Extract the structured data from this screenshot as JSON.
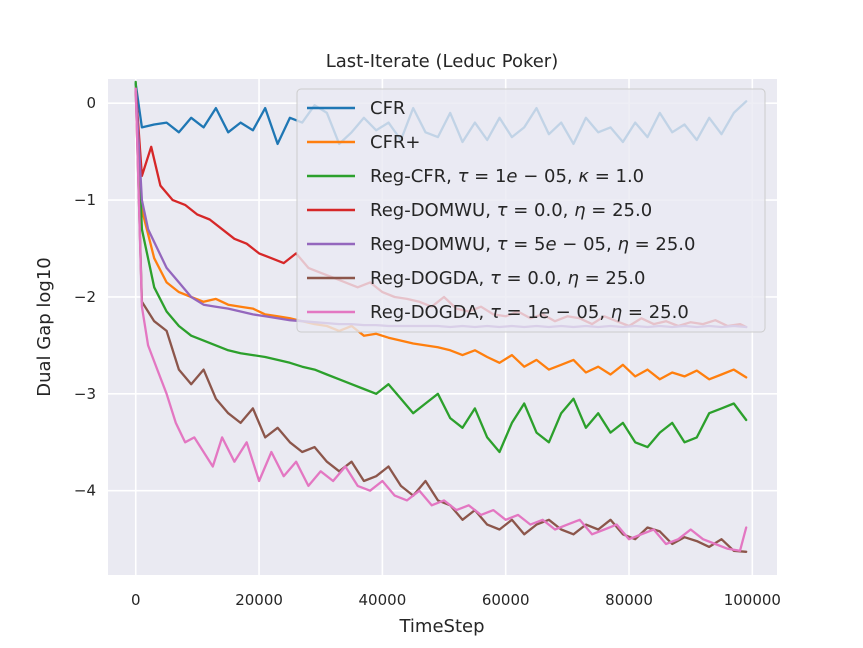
{
  "chart_data": {
    "type": "line",
    "title": "Last-Iterate (Leduc Poker)",
    "xlabel": "TimeStep",
    "ylabel": "Dual Gap log10",
    "xlim": [
      -4500,
      104000
    ],
    "ylim": [
      -4.87,
      0.25
    ],
    "xticks": [
      0,
      20000,
      40000,
      60000,
      80000,
      100000
    ],
    "xtick_labels": [
      "0",
      "20000",
      "40000",
      "60000",
      "80000",
      "100000"
    ],
    "yticks": [
      0,
      -1,
      -2,
      -3,
      -4
    ],
    "ytick_labels": [
      "0",
      "−1",
      "−2",
      "−3",
      "−4"
    ],
    "grid": true,
    "legend_position": "top-right",
    "series": [
      {
        "name": "CFR",
        "label_parts": [
          "CFR"
        ],
        "color": "#1f77b4",
        "x": [
          0,
          1000,
          3000,
          5000,
          7000,
          9000,
          11000,
          13000,
          15000,
          17000,
          19000,
          21000,
          23000,
          25000,
          27000,
          29000,
          31000,
          33000,
          35000,
          37000,
          39000,
          41000,
          43000,
          45000,
          47000,
          49000,
          51000,
          53000,
          55000,
          57000,
          59000,
          61000,
          63000,
          65000,
          67000,
          69000,
          71000,
          73000,
          75000,
          77000,
          79000,
          81000,
          83000,
          85000,
          87000,
          89000,
          91000,
          93000,
          95000,
          97000,
          99000
        ],
        "y": [
          0.2,
          -0.25,
          -0.22,
          -0.2,
          -0.3,
          -0.15,
          -0.25,
          -0.05,
          -0.3,
          -0.2,
          -0.28,
          -0.05,
          -0.42,
          -0.15,
          -0.2,
          -0.02,
          -0.1,
          -0.42,
          -0.3,
          -0.15,
          -0.28,
          -0.2,
          -0.38,
          -0.05,
          -0.3,
          -0.35,
          -0.1,
          -0.4,
          -0.2,
          -0.38,
          -0.15,
          -0.35,
          -0.25,
          -0.05,
          -0.32,
          -0.2,
          -0.42,
          -0.15,
          -0.3,
          -0.25,
          -0.4,
          -0.2,
          -0.35,
          -0.1,
          -0.3,
          -0.22,
          -0.38,
          -0.15,
          -0.32,
          -0.1,
          0.02
        ]
      },
      {
        "name": "CFR+",
        "label_parts": [
          "CFR+"
        ],
        "color": "#ff7f0e",
        "x": [
          0,
          1000,
          3000,
          5000,
          7000,
          9000,
          11000,
          13000,
          15000,
          17000,
          19000,
          21000,
          23000,
          25000,
          27000,
          29000,
          31000,
          33000,
          35000,
          37000,
          39000,
          41000,
          43000,
          45000,
          47000,
          49000,
          51000,
          53000,
          55000,
          57000,
          59000,
          61000,
          63000,
          65000,
          67000,
          69000,
          71000,
          73000,
          75000,
          77000,
          79000,
          81000,
          83000,
          85000,
          87000,
          89000,
          91000,
          93000,
          95000,
          97000,
          99000
        ],
        "y": [
          0.15,
          -1.1,
          -1.6,
          -1.85,
          -1.95,
          -2.0,
          -2.05,
          -2.02,
          -2.08,
          -2.1,
          -2.12,
          -2.18,
          -2.2,
          -2.22,
          -2.25,
          -2.28,
          -2.3,
          -2.35,
          -2.3,
          -2.4,
          -2.38,
          -2.42,
          -2.45,
          -2.48,
          -2.5,
          -2.52,
          -2.55,
          -2.6,
          -2.55,
          -2.62,
          -2.68,
          -2.6,
          -2.72,
          -2.65,
          -2.75,
          -2.7,
          -2.65,
          -2.78,
          -2.72,
          -2.8,
          -2.7,
          -2.82,
          -2.75,
          -2.85,
          -2.78,
          -2.82,
          -2.76,
          -2.85,
          -2.8,
          -2.75,
          -2.83
        ]
      },
      {
        "name": "Reg-CFR",
        "label_parts": [
          "Reg-CFR, ",
          "τ",
          " = 1",
          "e",
          " − 05, ",
          "κ",
          " = 1.0"
        ],
        "color": "#2ca02c",
        "x": [
          0,
          1000,
          3000,
          5000,
          7000,
          9000,
          11000,
          13000,
          15000,
          17000,
          19000,
          21000,
          23000,
          25000,
          27000,
          29000,
          31000,
          33000,
          35000,
          37000,
          39000,
          41000,
          43000,
          45000,
          47000,
          49000,
          51000,
          53000,
          55000,
          57000,
          59000,
          61000,
          63000,
          65000,
          67000,
          69000,
          71000,
          73000,
          75000,
          77000,
          79000,
          81000,
          83000,
          85000,
          87000,
          89000,
          91000,
          93000,
          95000,
          97000,
          99000
        ],
        "y": [
          0.22,
          -1.3,
          -1.9,
          -2.15,
          -2.3,
          -2.4,
          -2.45,
          -2.5,
          -2.55,
          -2.58,
          -2.6,
          -2.62,
          -2.65,
          -2.68,
          -2.72,
          -2.75,
          -2.8,
          -2.85,
          -2.9,
          -2.95,
          -3.0,
          -2.9,
          -3.05,
          -3.2,
          -3.1,
          -3.0,
          -3.25,
          -3.35,
          -3.15,
          -3.45,
          -3.6,
          -3.3,
          -3.1,
          -3.4,
          -3.5,
          -3.2,
          -3.05,
          -3.35,
          -3.2,
          -3.4,
          -3.3,
          -3.5,
          -3.55,
          -3.4,
          -3.3,
          -3.5,
          -3.45,
          -3.2,
          -3.15,
          -3.1,
          -3.27
        ]
      },
      {
        "name": "Reg-DOMWU (tau=0.0)",
        "label_parts": [
          "Reg-DOMWU, ",
          "τ",
          " = 0.0, ",
          "η",
          " = 25.0"
        ],
        "color": "#d62728",
        "x": [
          0,
          1000,
          2500,
          4000,
          6000,
          8000,
          10000,
          12000,
          14000,
          16000,
          18000,
          20000,
          22000,
          24000,
          26000,
          28000,
          30000,
          32000,
          34000,
          36000,
          38000,
          40000,
          42000,
          44000,
          46000,
          48000,
          50000,
          52000,
          54000,
          56000,
          58000,
          60000,
          62000,
          64000,
          66000,
          68000,
          70000,
          72000,
          74000,
          76000,
          78000,
          80000,
          82000,
          84000,
          86000,
          88000,
          90000,
          92000,
          94000,
          96000,
          98000,
          99000
        ],
        "y": [
          0.15,
          -0.75,
          -0.45,
          -0.85,
          -1.0,
          -1.05,
          -1.15,
          -1.2,
          -1.3,
          -1.4,
          -1.45,
          -1.55,
          -1.6,
          -1.65,
          -1.55,
          -1.7,
          -1.75,
          -1.8,
          -1.85,
          -1.9,
          -1.85,
          -1.95,
          -2.0,
          -2.02,
          -2.05,
          -2.1,
          -2.0,
          -2.12,
          -2.15,
          -2.1,
          -2.18,
          -2.2,
          -2.15,
          -2.22,
          -2.18,
          -2.25,
          -2.2,
          -2.22,
          -2.28,
          -2.2,
          -2.25,
          -2.3,
          -2.22,
          -2.28,
          -2.25,
          -2.3,
          -2.26,
          -2.28,
          -2.24,
          -2.3,
          -2.28,
          -2.31
        ]
      },
      {
        "name": "Reg-DOMWU (tau=5e-05)",
        "label_parts": [
          "Reg-DOMWU, ",
          "τ",
          " = 5",
          "e",
          " − 05, ",
          "η",
          " = 25.0"
        ],
        "color": "#9467bd",
        "x": [
          0,
          1000,
          2000,
          3500,
          5000,
          7000,
          9000,
          11000,
          13000,
          15000,
          17000,
          19000,
          21000,
          23000,
          25000,
          27000,
          29000,
          31000,
          33000,
          35000,
          37000,
          39000,
          41000,
          43000,
          45000,
          47000,
          49000,
          51000,
          53000,
          55000,
          57000,
          59000,
          61000,
          63000,
          65000,
          67000,
          69000,
          71000,
          73000,
          75000,
          77000,
          79000,
          81000,
          83000,
          85000,
          87000,
          89000,
          91000,
          93000,
          95000,
          97000,
          99000
        ],
        "y": [
          0.15,
          -1.0,
          -1.3,
          -1.5,
          -1.7,
          -1.85,
          -2.0,
          -2.08,
          -2.1,
          -2.12,
          -2.15,
          -2.18,
          -2.2,
          -2.22,
          -2.24,
          -2.25,
          -2.26,
          -2.27,
          -2.28,
          -2.28,
          -2.29,
          -2.29,
          -2.3,
          -2.3,
          -2.3,
          -2.3,
          -2.3,
          -2.31,
          -2.3,
          -2.31,
          -2.3,
          -2.31,
          -2.3,
          -2.31,
          -2.3,
          -2.31,
          -2.3,
          -2.31,
          -2.3,
          -2.31,
          -2.3,
          -2.31,
          -2.3,
          -2.31,
          -2.3,
          -2.31,
          -2.3,
          -2.31,
          -2.3,
          -2.31,
          -2.3,
          -2.31
        ]
      },
      {
        "name": "Reg-DOGDA (tau=0.0)",
        "label_parts": [
          "Reg-DOGDA, ",
          "τ",
          " = 0.0, ",
          "η",
          " = 25.0"
        ],
        "color": "#8c564b",
        "x": [
          0,
          1000,
          3000,
          5000,
          7000,
          9000,
          11000,
          13000,
          15000,
          17000,
          19000,
          21000,
          23000,
          25000,
          27000,
          29000,
          31000,
          33000,
          35000,
          37000,
          39000,
          41000,
          43000,
          45000,
          47000,
          49000,
          51000,
          53000,
          55000,
          57000,
          59000,
          61000,
          63000,
          65000,
          67000,
          69000,
          71000,
          73000,
          75000,
          77000,
          79000,
          81000,
          83000,
          85000,
          87000,
          89000,
          91000,
          93000,
          95000,
          97000,
          99000
        ],
        "y": [
          0.15,
          -2.05,
          -2.25,
          -2.35,
          -2.75,
          -2.9,
          -2.75,
          -3.05,
          -3.2,
          -3.3,
          -3.15,
          -3.45,
          -3.35,
          -3.5,
          -3.6,
          -3.55,
          -3.7,
          -3.8,
          -3.7,
          -3.9,
          -3.85,
          -3.75,
          -3.95,
          -4.05,
          -3.9,
          -4.1,
          -4.15,
          -4.3,
          -4.2,
          -4.35,
          -4.4,
          -4.3,
          -4.45,
          -4.35,
          -4.3,
          -4.4,
          -4.45,
          -4.35,
          -4.4,
          -4.3,
          -4.45,
          -4.5,
          -4.38,
          -4.42,
          -4.55,
          -4.48,
          -4.52,
          -4.58,
          -4.5,
          -4.62,
          -4.63
        ]
      },
      {
        "name": "Reg-DOGDA (tau=1e-05)",
        "label_parts": [
          "Reg-DOGDA, ",
          "τ",
          " = 1",
          "e",
          " − 05, ",
          "η",
          " = 25.0"
        ],
        "color": "#e377c2",
        "x": [
          0,
          1000,
          2000,
          3500,
          5000,
          6500,
          8000,
          9500,
          11000,
          12500,
          14000,
          16000,
          18000,
          20000,
          22000,
          24000,
          26000,
          28000,
          30000,
          32000,
          34000,
          36000,
          38000,
          40000,
          42000,
          44000,
          46000,
          48000,
          50000,
          52000,
          54000,
          56000,
          58000,
          60000,
          62000,
          64000,
          66000,
          68000,
          70000,
          72000,
          74000,
          76000,
          78000,
          80000,
          82000,
          84000,
          86000,
          88000,
          90000,
          92000,
          94000,
          96000,
          98000,
          99000
        ],
        "y": [
          0.15,
          -2.1,
          -2.5,
          -2.75,
          -3.0,
          -3.3,
          -3.5,
          -3.45,
          -3.6,
          -3.75,
          -3.45,
          -3.7,
          -3.5,
          -3.9,
          -3.6,
          -3.85,
          -3.7,
          -3.95,
          -3.8,
          -3.9,
          -3.75,
          -3.95,
          -4.0,
          -3.9,
          -4.05,
          -4.1,
          -4.0,
          -4.15,
          -4.1,
          -4.2,
          -4.15,
          -4.25,
          -4.2,
          -4.3,
          -4.25,
          -4.35,
          -4.3,
          -4.4,
          -4.35,
          -4.3,
          -4.45,
          -4.4,
          -4.35,
          -4.5,
          -4.45,
          -4.4,
          -4.55,
          -4.5,
          -4.4,
          -4.5,
          -4.55,
          -4.6,
          -4.62,
          -4.38
        ]
      }
    ]
  }
}
